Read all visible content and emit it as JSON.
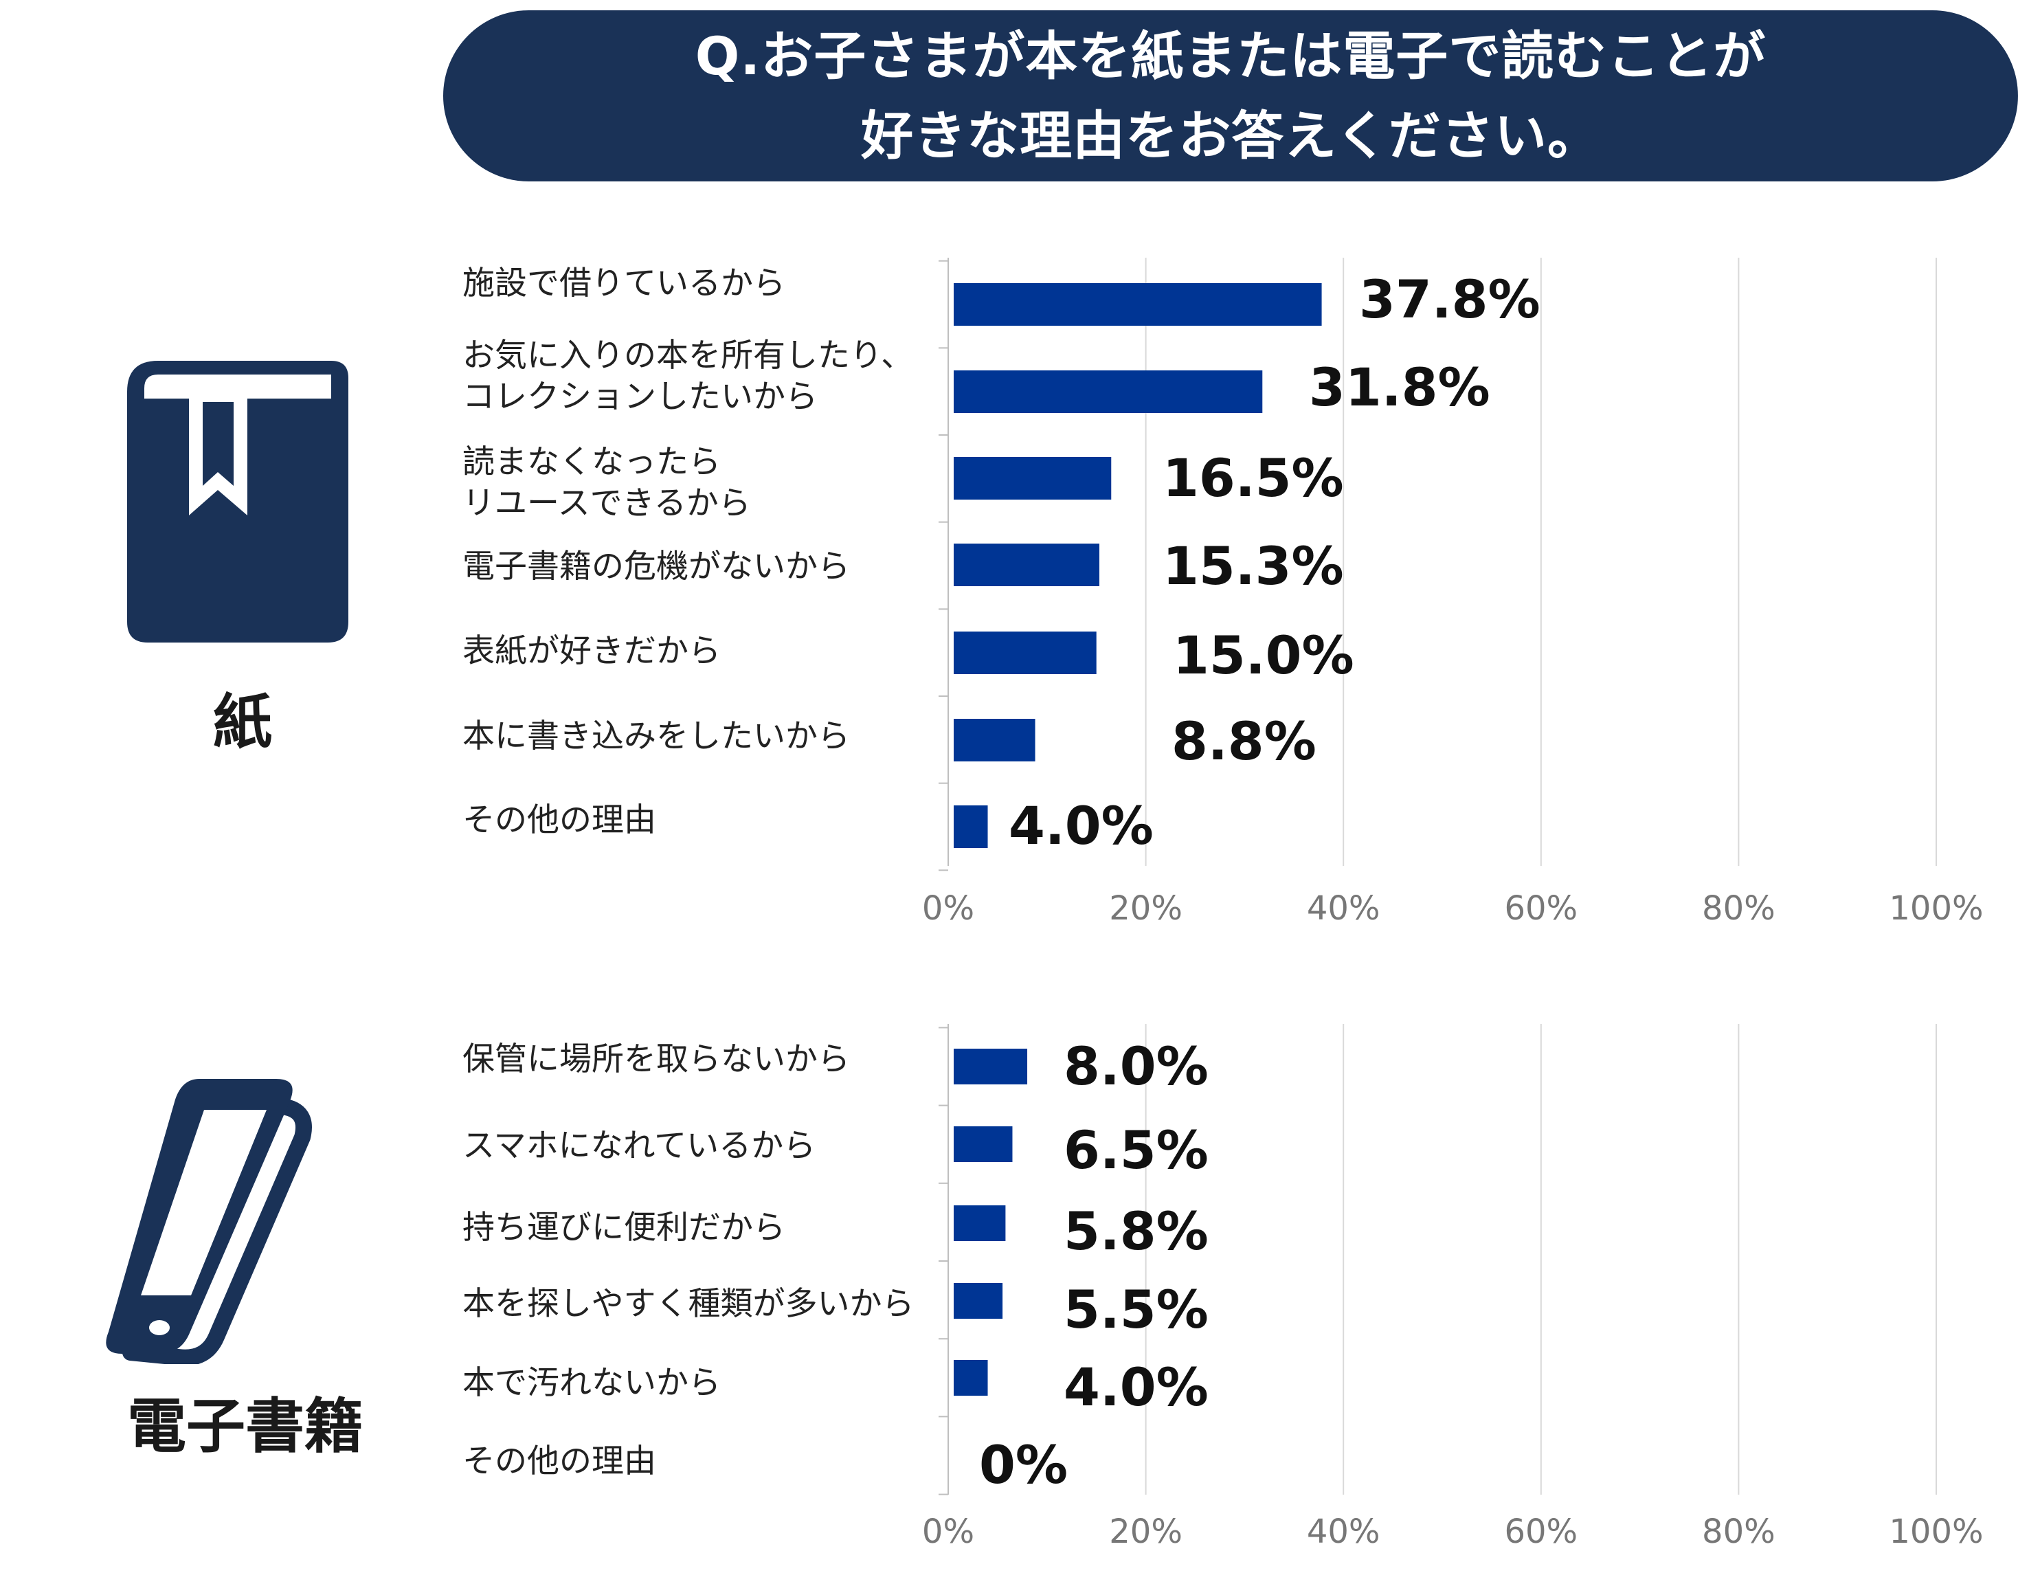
{
  "title": {
    "line1": "Q.お子さまが本を紙または電子で読むことが",
    "line2": "好きな理由をお答えください。"
  },
  "colors": {
    "banner": "#1a3257",
    "bar": "#003594",
    "icon": "#1a3257",
    "grid": "#d9d9d9"
  },
  "icons": {
    "paper": "book-icon",
    "digital": "smartphone-icon"
  },
  "chart_data": [
    {
      "type": "bar",
      "orientation": "horizontal",
      "group_label": "紙",
      "categories": [
        [
          "施設で借りているから"
        ],
        [
          "お気に入りの本を所有したり、",
          "コレクションしたいから"
        ],
        [
          "読まなくなったら",
          "リユースできるから"
        ],
        [
          "電子書籍の危機がないから"
        ],
        [
          "表紙が好きだから"
        ],
        [
          "本に書き込みをしたいから"
        ],
        [
          "その他の理由"
        ]
      ],
      "values": [
        37.8,
        31.8,
        16.5,
        15.3,
        15.0,
        8.8,
        4.0
      ],
      "value_labels": [
        "37.8%",
        "31.8%",
        "16.5%",
        "15.3%",
        "15.0%",
        "8.8%",
        "4.0%"
      ],
      "xlim": [
        0,
        100
      ],
      "ticks": [
        "0%",
        "20%",
        "40%",
        "60%",
        "80%",
        "100%"
      ],
      "grid": true
    },
    {
      "type": "bar",
      "orientation": "horizontal",
      "group_label": "電子書籍",
      "categories": [
        [
          "保管に場所を取らないから"
        ],
        [
          "スマホになれているから"
        ],
        [
          "持ち運びに便利だから"
        ],
        [
          "本を探しやすく種類が多いから"
        ],
        [
          "本で汚れないから"
        ],
        [
          "その他の理由"
        ]
      ],
      "values": [
        8.0,
        6.5,
        5.8,
        5.5,
        4.0,
        0
      ],
      "value_labels": [
        "8.0%",
        "6.5%",
        "5.8%",
        "5.5%",
        "4.0%",
        "0%"
      ],
      "xlim": [
        0,
        100
      ],
      "ticks": [
        "0%",
        "20%",
        "40%",
        "60%",
        "80%",
        "100%"
      ],
      "grid": true
    }
  ]
}
